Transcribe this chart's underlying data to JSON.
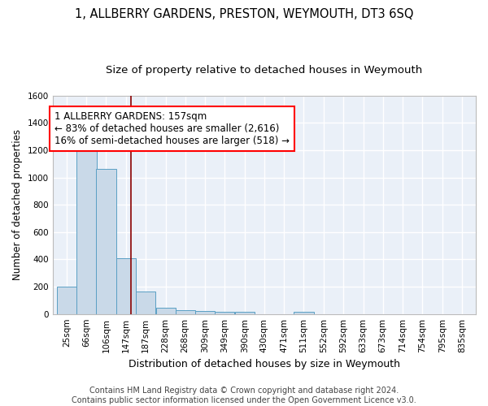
{
  "title": "1, ALLBERRY GARDENS, PRESTON, WEYMOUTH, DT3 6SQ",
  "subtitle": "Size of property relative to detached houses in Weymouth",
  "xlabel": "Distribution of detached houses by size in Weymouth",
  "ylabel": "Number of detached properties",
  "bins": [
    25,
    66,
    106,
    147,
    187,
    228,
    268,
    309,
    349,
    390,
    430,
    471,
    511,
    552,
    592,
    633,
    673,
    714,
    754,
    795,
    835
  ],
  "values": [
    200,
    1225,
    1065,
    410,
    165,
    47,
    25,
    20,
    15,
    15,
    0,
    0,
    15,
    0,
    0,
    0,
    0,
    0,
    0,
    0,
    0
  ],
  "bar_color": "#c9d9e8",
  "bar_edge_color": "#5a9fc4",
  "red_line_x": 157,
  "ylim": [
    0,
    1600
  ],
  "yticks": [
    0,
    200,
    400,
    600,
    800,
    1000,
    1200,
    1400,
    1600
  ],
  "annotation_line1": "1 ALLBERRY GARDENS: 157sqm",
  "annotation_line2": "← 83% of detached houses are smaller (2,616)",
  "annotation_line3": "16% of semi-detached houses are larger (518) →",
  "annotation_box_color": "white",
  "annotation_box_edge_color": "red",
  "background_color": "#eaf0f8",
  "grid_color": "white",
  "footer_text": "Contains HM Land Registry data © Crown copyright and database right 2024.\nContains public sector information licensed under the Open Government Licence v3.0.",
  "title_fontsize": 10.5,
  "subtitle_fontsize": 9.5,
  "ylabel_fontsize": 8.5,
  "xlabel_fontsize": 9,
  "tick_fontsize": 7.5,
  "annotation_fontsize": 8.5,
  "footer_fontsize": 7
}
